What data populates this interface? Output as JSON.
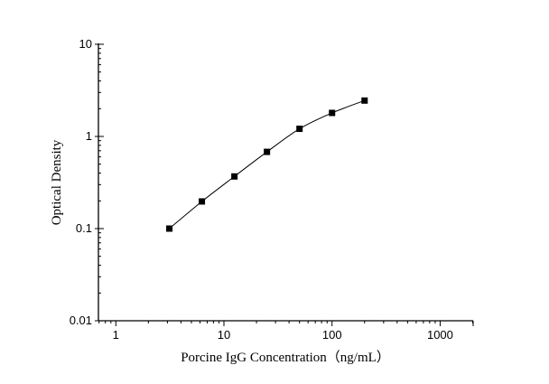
{
  "chart_data": {
    "type": "line",
    "title": "",
    "xlabel": "Porcine IgG Concentration（ng/mL）",
    "ylabel": "Optical Density",
    "xscale": "log",
    "yscale": "log",
    "xlim": [
      0.69,
      2020
    ],
    "ylim": [
      0.01,
      10
    ],
    "xticks": [
      1,
      10,
      100,
      1000
    ],
    "xtick_labels": [
      "1",
      "10",
      "100",
      "1000"
    ],
    "yticks": [
      0.01,
      0.1,
      1,
      10
    ],
    "ytick_labels": [
      "0.01",
      "0.1",
      "1",
      "10"
    ],
    "grid": false,
    "legend": "none",
    "series": [
      {
        "marker": "square",
        "color": "#000000",
        "fit_line": "smooth curve",
        "x": [
          3.125,
          6.25,
          12.5,
          25,
          50,
          100,
          200
        ],
        "y": [
          0.1,
          0.197,
          0.368,
          0.68,
          1.21,
          1.8,
          2.45
        ]
      }
    ]
  }
}
